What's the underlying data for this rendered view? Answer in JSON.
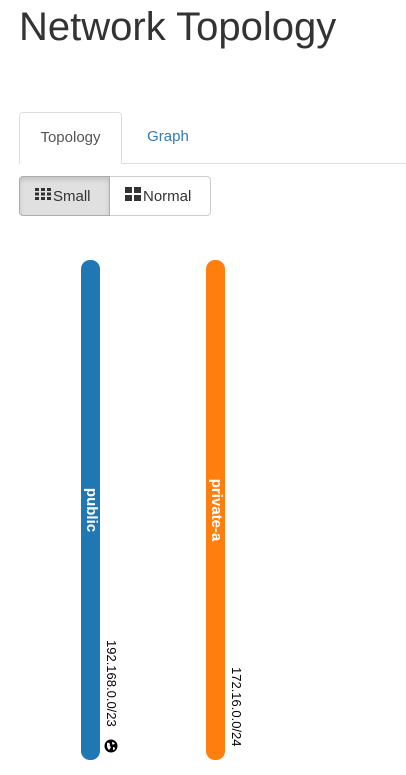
{
  "header": {
    "title": "Network Topology"
  },
  "tabs": [
    {
      "label": "Topology",
      "active": true
    },
    {
      "label": "Graph",
      "active": false
    }
  ],
  "view_toggle": {
    "small_label": "Small",
    "normal_label": "Normal",
    "small_icon": "th-grid-icon",
    "normal_icon": "th-large-icon",
    "selected": "Small"
  },
  "networks": [
    {
      "name": "public",
      "cidr": "192.168.0.0/23",
      "color": "#1f77b4",
      "external_icon": "globe-icon"
    },
    {
      "name": "private-a",
      "cidr": "172.16.0.0/24",
      "color": "#ff7f0e"
    }
  ],
  "colors": {
    "link": "#337ab7",
    "text": "#333333"
  }
}
